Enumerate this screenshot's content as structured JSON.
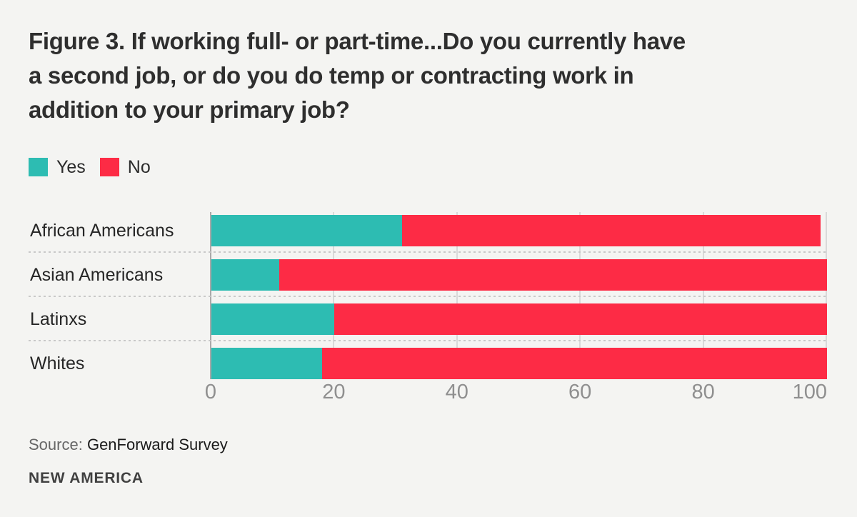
{
  "page": {
    "background": "#f4f4f2"
  },
  "title_lines": [
    "Figure 3. If working full- or part-time...Do you currently have",
    "a second job, or do you do temp or contracting work in",
    "addition to your primary job?"
  ],
  "legend": {
    "items": [
      {
        "label": "Yes",
        "color": "#2dbcb2"
      },
      {
        "label": "No",
        "color": "#fd2b45"
      }
    ]
  },
  "chart_data": {
    "type": "bar",
    "orientation": "horizontal",
    "stacked": true,
    "title": "Figure 3. If working full- or part-time...Do you currently have a second job, or do you do temp or contracting work in addition to your primary job?",
    "categories": [
      "African Americans",
      "Asian Americans",
      "Latinxs",
      "Whites"
    ],
    "series": [
      {
        "name": "Yes",
        "color": "#2dbcb2",
        "values": [
          31,
          11,
          20,
          18
        ]
      },
      {
        "name": "No",
        "color": "#fd2b45",
        "values": [
          68,
          89,
          80,
          82
        ]
      }
    ],
    "xlim": [
      0,
      100
    ],
    "xticks": [
      0,
      20,
      40,
      60,
      80,
      100
    ],
    "grid": "vertical",
    "legend_position": "top-left"
  },
  "footer": {
    "source_label": "Source:",
    "source_text": "GenForward Survey",
    "brand": "NEW AMERICA"
  }
}
